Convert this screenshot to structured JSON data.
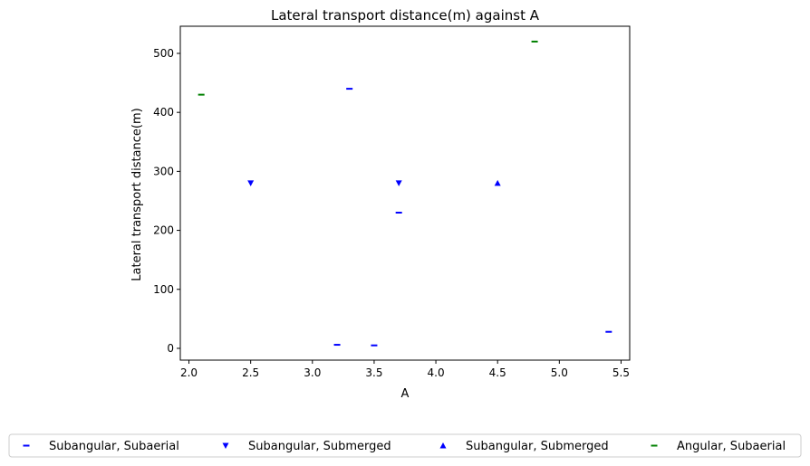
{
  "chart_data": {
    "type": "scatter",
    "title": "Lateral transport distance(m) against A",
    "xlabel": "A",
    "ylabel": "Lateral transport distance(m)",
    "xlim": [
      1.93,
      5.57
    ],
    "ylim": [
      -20,
      546
    ],
    "xticks": [
      2.0,
      2.5,
      3.0,
      3.5,
      4.0,
      4.5,
      5.0,
      5.5
    ],
    "yticks": [
      0,
      100,
      200,
      300,
      400,
      500
    ],
    "grid": false,
    "legend_position": "bottom-center",
    "series": [
      {
        "name": "Subangular, Subaerial",
        "marker": "dash",
        "color": "#0000ff",
        "points": [
          [
            3.3,
            440
          ],
          [
            3.7,
            230
          ],
          [
            3.2,
            6
          ],
          [
            3.5,
            5
          ],
          [
            5.4,
            28
          ]
        ]
      },
      {
        "name": "Subangular, Submerged",
        "marker": "triangle-down",
        "color": "#0000ff",
        "points": [
          [
            2.5,
            280
          ],
          [
            3.7,
            280
          ]
        ]
      },
      {
        "name": "Subangular, Submerged",
        "marker": "triangle-up",
        "color": "#0000ff",
        "points": [
          [
            4.5,
            280
          ]
        ]
      },
      {
        "name": "Angular, Subaerial",
        "marker": "dash",
        "color": "#008000",
        "points": [
          [
            2.1,
            430
          ],
          [
            4.8,
            520
          ]
        ]
      }
    ]
  }
}
